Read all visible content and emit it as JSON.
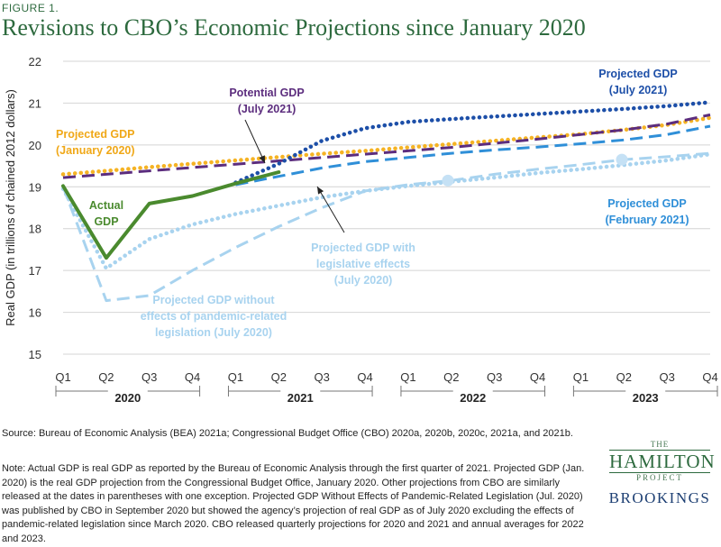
{
  "figure_label": "FIGURE 1.",
  "title": "Revisions to CBO’s Economic Projections since January 2020",
  "source": "Source: Bureau of Economic Analysis (BEA) 2021a; Congressional Budget Office (CBO) 2020a, 2020b, 2020c, 2021a, and 2021b.",
  "note": "Note: Actual GDP is real GDP as reported by the Bureau of Economic Analysis through the first quarter of 2021. Projected GDP (Jan. 2020) is the real GDP projection from the Congressional Budget Office, January 2020.  Other projections from CBO are similarly released at the dates in parentheses with one exception. Projected GDP Without Effects of Pandemic-Related Legislation (Jul. 2020) was published by CBO in September 2020 but showed the agency’s projection of real GDP as of July 2020 excluding the effects of pandemic-related legislation since March 2020. CBO released quarterly projections for 2020 and 2021 and annual averages for 2022 and 2023.",
  "logo": {
    "the": "THE",
    "hamilton": "HAMILTON",
    "project": "PROJECT",
    "brookings": "BROOKINGS"
  },
  "chart_data": {
    "type": "line",
    "ylabel": "Real GDP (in trillions of chained 2012 dollars)",
    "ylim": [
      15,
      22
    ],
    "yticks": [
      15,
      16,
      17,
      18,
      19,
      20,
      21,
      22
    ],
    "xticks": [
      "Q1",
      "Q2",
      "Q3",
      "Q4",
      "Q1",
      "Q2",
      "Q3",
      "Q4",
      "Q1",
      "Q2",
      "Q3",
      "Q4",
      "Q1",
      "Q2",
      "Q3",
      "Q4"
    ],
    "years": [
      "2020",
      "2021",
      "2022",
      "2023"
    ],
    "grid": true,
    "series": [
      {
        "label_lines": [
          "Projected GDP",
          "(January 2020)"
        ],
        "color": "#f5b324",
        "style": "dotted",
        "x": [
          0,
          1,
          2,
          3,
          4,
          5,
          6,
          7,
          8,
          9,
          10,
          11,
          12,
          13,
          14,
          15
        ],
        "y": [
          19.3,
          19.38,
          19.47,
          19.55,
          19.63,
          19.71,
          19.79,
          19.86,
          19.94,
          20.02,
          20.1,
          20.18,
          20.26,
          20.36,
          20.48,
          20.65
        ]
      },
      {
        "label_lines": [
          "Potential GDP",
          "(July 2021)"
        ],
        "color": "#5c2d7e",
        "style": "dashed",
        "x": [
          0,
          1,
          2,
          3,
          4,
          5,
          6,
          7,
          8,
          9,
          10,
          11,
          12,
          13,
          14,
          15
        ],
        "y": [
          19.22,
          19.3,
          19.38,
          19.46,
          19.54,
          19.62,
          19.7,
          19.78,
          19.86,
          19.94,
          20.04,
          20.14,
          20.25,
          20.36,
          20.5,
          20.72
        ]
      },
      {
        "label_lines": [
          "Projected GDP",
          "(July 2021)"
        ],
        "color": "#1d4fa8",
        "style": "dotted",
        "x": [
          4,
          5,
          6,
          7,
          8,
          9,
          10,
          11,
          12,
          13,
          14,
          15
        ],
        "y": [
          19.1,
          19.55,
          20.1,
          20.4,
          20.55,
          20.62,
          20.68,
          20.74,
          20.8,
          20.86,
          20.93,
          21.02
        ]
      },
      {
        "label_lines": [
          "Projected GDP",
          "(February 2021)"
        ],
        "color": "#2f8fd8",
        "style": "dashed",
        "x": [
          4,
          5,
          6,
          7,
          8,
          9,
          10,
          11,
          12,
          13,
          14,
          15
        ],
        "y": [
          19.05,
          19.25,
          19.45,
          19.6,
          19.7,
          19.8,
          19.88,
          19.95,
          20.03,
          20.12,
          20.25,
          20.45
        ]
      },
      {
        "label_lines": [
          "Projected GDP with",
          "legislative effects",
          "(July 2020)"
        ],
        "color": "#a8d3ef",
        "style": "dotted",
        "x": [
          0,
          1,
          2,
          3,
          4,
          5,
          6,
          7,
          8,
          9,
          10,
          11,
          12,
          13,
          14,
          15
        ],
        "y": [
          18.95,
          17.05,
          17.75,
          18.1,
          18.35,
          18.55,
          18.75,
          18.9,
          19.02,
          19.12,
          19.22,
          19.33,
          19.42,
          19.52,
          19.63,
          19.78
        ]
      },
      {
        "label_lines": [
          "Projected GDP without",
          "effects of pandemic-related",
          "legislation (July 2020)"
        ],
        "color": "#a8d3ef",
        "style": "dashed",
        "x": [
          0,
          1,
          2,
          3,
          4,
          5,
          6,
          7,
          8,
          9,
          10,
          11,
          12,
          13,
          14,
          15
        ],
        "y": [
          19.0,
          16.28,
          16.4,
          17.0,
          17.55,
          18.05,
          18.5,
          18.9,
          19.05,
          19.15,
          19.3,
          19.42,
          19.53,
          19.65,
          19.72,
          19.8
        ]
      },
      {
        "label_lines": [
          "Actual",
          "GDP"
        ],
        "color": "#4a8a2e",
        "style": "solid",
        "x": [
          0,
          1,
          2,
          3,
          4,
          5
        ],
        "y": [
          19.02,
          17.3,
          18.6,
          18.78,
          19.08,
          19.35
        ]
      }
    ]
  }
}
